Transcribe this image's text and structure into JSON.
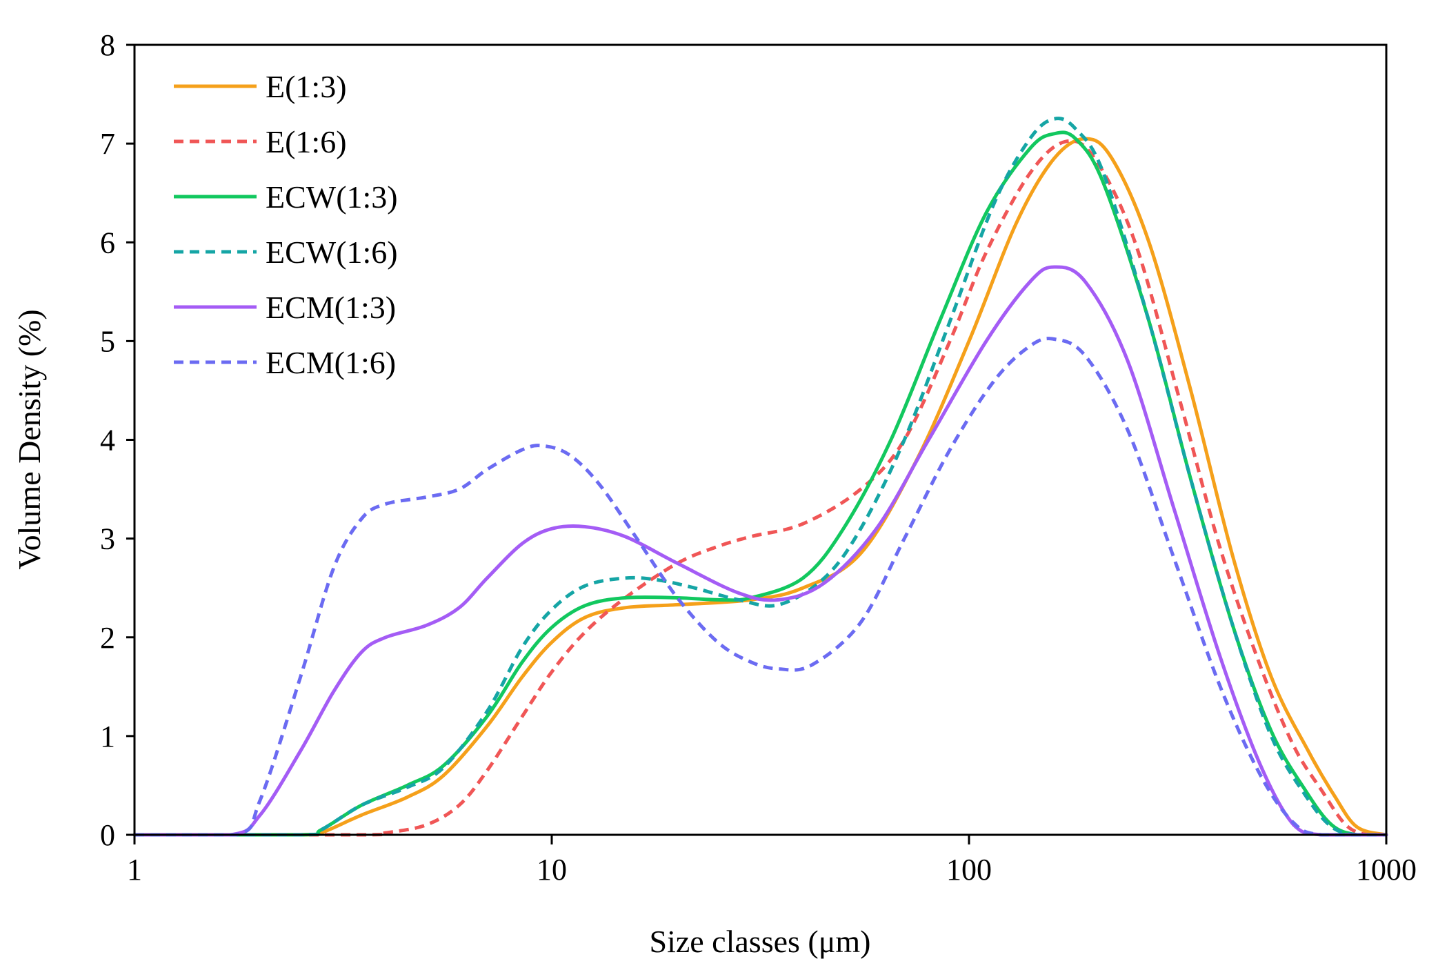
{
  "chart_data": {
    "type": "line",
    "title": "",
    "xlabel": "Size classes (μm)",
    "ylabel": "Volume Density (%)",
    "xscale": "log",
    "xlim": [
      1,
      1000
    ],
    "ylim": [
      0,
      8
    ],
    "xticks": [
      1,
      10,
      100,
      1000
    ],
    "xtick_labels": [
      "1",
      "10",
      "100",
      "1000"
    ],
    "yticks": [
      0,
      1,
      2,
      3,
      4,
      5,
      6,
      7,
      8
    ],
    "ytick_labels": [
      "0",
      "1",
      "2",
      "3",
      "4",
      "5",
      "6",
      "7",
      "8"
    ],
    "grid": false,
    "legend_position": "top-left",
    "series": [
      {
        "name": "E(1:3)",
        "color": "#F5A01A",
        "dashed": false,
        "points": [
          [
            1,
            0
          ],
          [
            2.5,
            0
          ],
          [
            2.8,
            0.02
          ],
          [
            3.5,
            0.2
          ],
          [
            4.5,
            0.38
          ],
          [
            5.5,
            0.6
          ],
          [
            7,
            1.1
          ],
          [
            8.5,
            1.6
          ],
          [
            10,
            1.95
          ],
          [
            12,
            2.2
          ],
          [
            15,
            2.3
          ],
          [
            20,
            2.33
          ],
          [
            30,
            2.38
          ],
          [
            40,
            2.5
          ],
          [
            55,
            2.85
          ],
          [
            75,
            3.8
          ],
          [
            100,
            5.0
          ],
          [
            130,
            6.2
          ],
          [
            160,
            6.85
          ],
          [
            190,
            7.05
          ],
          [
            220,
            6.85
          ],
          [
            270,
            6.0
          ],
          [
            340,
            4.5
          ],
          [
            430,
            2.8
          ],
          [
            530,
            1.6
          ],
          [
            650,
            0.85
          ],
          [
            750,
            0.4
          ],
          [
            850,
            0.08
          ],
          [
            1000,
            0
          ]
        ]
      },
      {
        "name": "E(1:6)",
        "color": "#F05656",
        "dashed": true,
        "points": [
          [
            1,
            0
          ],
          [
            3.5,
            0
          ],
          [
            4,
            0.02
          ],
          [
            5,
            0.1
          ],
          [
            6,
            0.3
          ],
          [
            7,
            0.65
          ],
          [
            8.5,
            1.2
          ],
          [
            10,
            1.65
          ],
          [
            12,
            2.05
          ],
          [
            15,
            2.4
          ],
          [
            20,
            2.75
          ],
          [
            25,
            2.92
          ],
          [
            30,
            3.02
          ],
          [
            40,
            3.15
          ],
          [
            55,
            3.5
          ],
          [
            70,
            4.0
          ],
          [
            90,
            5.0
          ],
          [
            110,
            5.9
          ],
          [
            140,
            6.7
          ],
          [
            170,
            7.02
          ],
          [
            200,
            6.85
          ],
          [
            250,
            6.0
          ],
          [
            320,
            4.4
          ],
          [
            400,
            2.9
          ],
          [
            500,
            1.7
          ],
          [
            600,
            0.9
          ],
          [
            700,
            0.45
          ],
          [
            800,
            0.1
          ],
          [
            900,
            0
          ],
          [
            1000,
            0
          ]
        ]
      },
      {
        "name": "ECW(1:3)",
        "color": "#12C85F",
        "dashed": false,
        "points": [
          [
            1,
            0
          ],
          [
            2.5,
            0
          ],
          [
            2.8,
            0.05
          ],
          [
            3.5,
            0.3
          ],
          [
            4.5,
            0.5
          ],
          [
            5.5,
            0.7
          ],
          [
            7,
            1.2
          ],
          [
            8.5,
            1.75
          ],
          [
            10,
            2.1
          ],
          [
            12,
            2.32
          ],
          [
            15,
            2.4
          ],
          [
            20,
            2.4
          ],
          [
            25,
            2.38
          ],
          [
            30,
            2.4
          ],
          [
            40,
            2.6
          ],
          [
            50,
            3.1
          ],
          [
            65,
            4.0
          ],
          [
            85,
            5.2
          ],
          [
            110,
            6.3
          ],
          [
            140,
            6.95
          ],
          [
            160,
            7.1
          ],
          [
            180,
            7.05
          ],
          [
            210,
            6.6
          ],
          [
            270,
            5.2
          ],
          [
            340,
            3.6
          ],
          [
            430,
            2.1
          ],
          [
            530,
            1.05
          ],
          [
            640,
            0.45
          ],
          [
            740,
            0.1
          ],
          [
            850,
            0
          ],
          [
            1000,
            0
          ]
        ]
      },
      {
        "name": "ECW(1:6)",
        "color": "#15A5A5",
        "dashed": true,
        "points": [
          [
            1,
            0
          ],
          [
            2.5,
            0
          ],
          [
            2.8,
            0.05
          ],
          [
            3.5,
            0.3
          ],
          [
            4.5,
            0.48
          ],
          [
            5.5,
            0.68
          ],
          [
            7,
            1.25
          ],
          [
            8.5,
            1.9
          ],
          [
            10,
            2.28
          ],
          [
            12,
            2.52
          ],
          [
            15,
            2.6
          ],
          [
            18,
            2.58
          ],
          [
            22,
            2.5
          ],
          [
            28,
            2.38
          ],
          [
            35,
            2.33
          ],
          [
            45,
            2.6
          ],
          [
            55,
            3.1
          ],
          [
            70,
            4.0
          ],
          [
            90,
            5.2
          ],
          [
            115,
            6.4
          ],
          [
            140,
            7.05
          ],
          [
            160,
            7.25
          ],
          [
            180,
            7.15
          ],
          [
            210,
            6.7
          ],
          [
            270,
            5.2
          ],
          [
            340,
            3.6
          ],
          [
            430,
            2.1
          ],
          [
            530,
            1.0
          ],
          [
            640,
            0.4
          ],
          [
            740,
            0.08
          ],
          [
            850,
            0
          ],
          [
            1000,
            0
          ]
        ]
      },
      {
        "name": "ECM(1:3)",
        "color": "#A45CF5",
        "dashed": false,
        "points": [
          [
            1,
            0
          ],
          [
            1.7,
            0
          ],
          [
            2,
            0.2
          ],
          [
            2.5,
            0.85
          ],
          [
            3,
            1.45
          ],
          [
            3.5,
            1.85
          ],
          [
            4,
            2.0
          ],
          [
            5,
            2.12
          ],
          [
            6,
            2.3
          ],
          [
            7,
            2.6
          ],
          [
            8.5,
            2.95
          ],
          [
            10,
            3.1
          ],
          [
            12,
            3.12
          ],
          [
            15,
            3.02
          ],
          [
            20,
            2.75
          ],
          [
            28,
            2.45
          ],
          [
            35,
            2.38
          ],
          [
            45,
            2.55
          ],
          [
            60,
            3.1
          ],
          [
            80,
            4.0
          ],
          [
            110,
            5.0
          ],
          [
            140,
            5.6
          ],
          [
            160,
            5.75
          ],
          [
            190,
            5.6
          ],
          [
            240,
            4.8
          ],
          [
            310,
            3.3
          ],
          [
            400,
            1.8
          ],
          [
            500,
            0.7
          ],
          [
            600,
            0.1
          ],
          [
            700,
            0
          ],
          [
            1000,
            0
          ]
        ]
      },
      {
        "name": "ECM(1:6)",
        "color": "#6B6BF2",
        "dashed": true,
        "points": [
          [
            1,
            0
          ],
          [
            1.75,
            0
          ],
          [
            2,
            0.35
          ],
          [
            2.5,
            1.6
          ],
          [
            3,
            2.7
          ],
          [
            3.5,
            3.2
          ],
          [
            4,
            3.35
          ],
          [
            5,
            3.42
          ],
          [
            6,
            3.5
          ],
          [
            7,
            3.7
          ],
          [
            8.5,
            3.9
          ],
          [
            9.5,
            3.94
          ],
          [
            11,
            3.85
          ],
          [
            13,
            3.55
          ],
          [
            16,
            3.0
          ],
          [
            20,
            2.4
          ],
          [
            25,
            1.95
          ],
          [
            30,
            1.75
          ],
          [
            35,
            1.68
          ],
          [
            42,
            1.72
          ],
          [
            55,
            2.15
          ],
          [
            70,
            3.0
          ],
          [
            90,
            3.9
          ],
          [
            115,
            4.6
          ],
          [
            140,
            4.95
          ],
          [
            160,
            5.02
          ],
          [
            190,
            4.85
          ],
          [
            240,
            4.1
          ],
          [
            310,
            2.8
          ],
          [
            400,
            1.5
          ],
          [
            500,
            0.6
          ],
          [
            600,
            0.12
          ],
          [
            700,
            0
          ],
          [
            1000,
            0
          ]
        ]
      }
    ]
  }
}
